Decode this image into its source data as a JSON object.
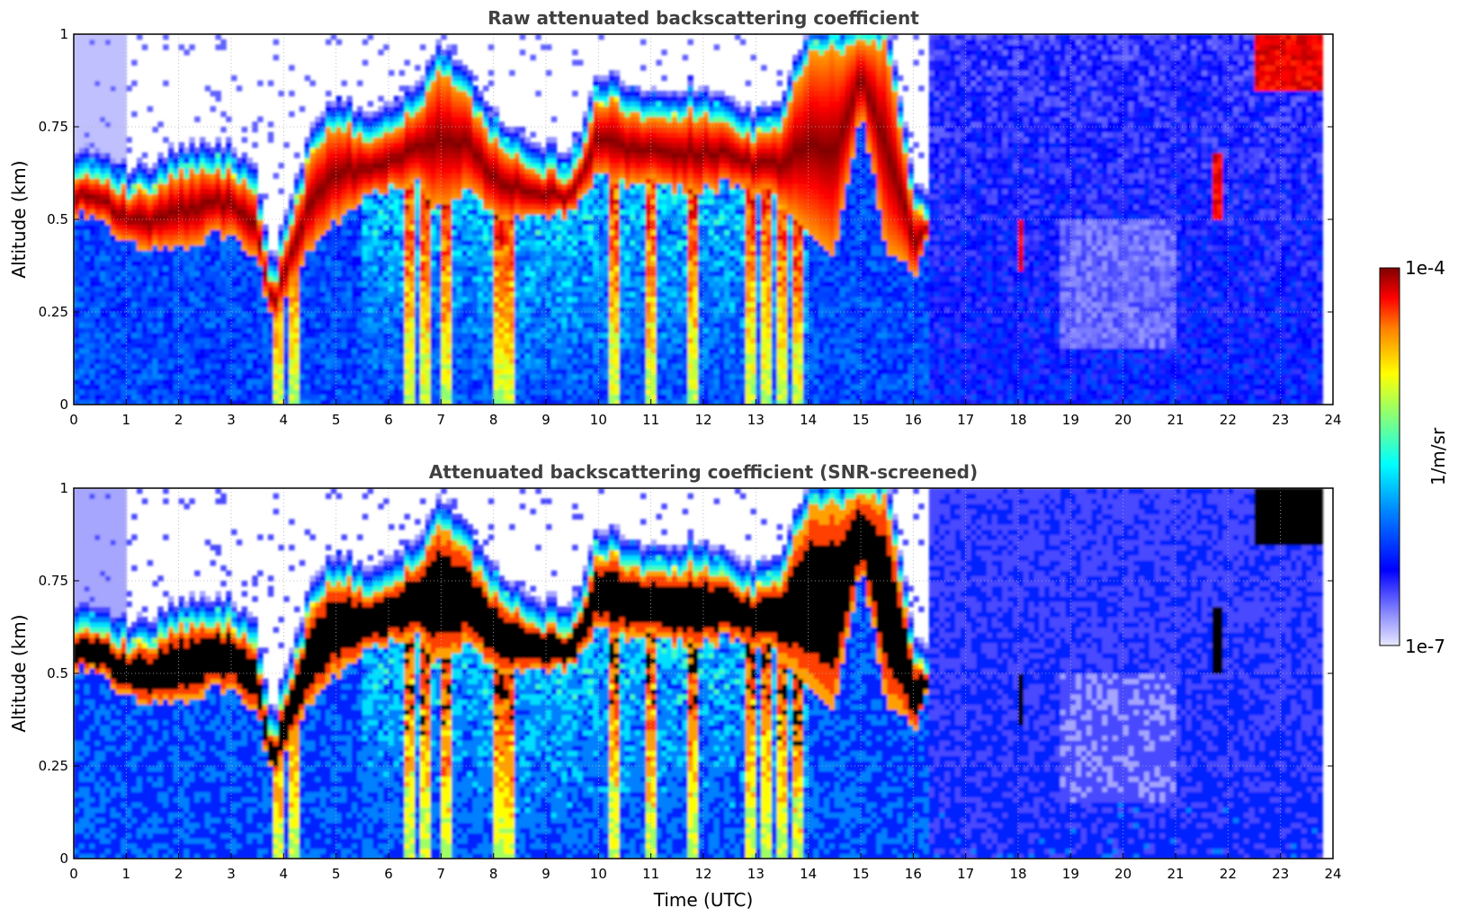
{
  "chart_data": [
    {
      "type": "heatmap",
      "title": "Raw attenuated backscattering coefficient",
      "xlabel": "",
      "ylabel": "Altitude (km)",
      "xlim": [
        0,
        24
      ],
      "ylim": [
        0,
        1
      ],
      "x_ticks": [
        "0",
        "1",
        "2",
        "3",
        "4",
        "5",
        "6",
        "7",
        "8",
        "9",
        "10",
        "11",
        "12",
        "13",
        "14",
        "15",
        "16",
        "17",
        "18",
        "19",
        "20",
        "21",
        "22",
        "23",
        "24"
      ],
      "y_ticks": [
        "0",
        "0.25",
        "0.5",
        "0.75",
        "1"
      ],
      "grid": true,
      "data_end_time": 23.8,
      "cloud_layer": {
        "time": [
          0,
          0.5,
          1,
          1.5,
          2,
          2.5,
          3,
          3.5,
          3.8,
          4,
          4.5,
          5,
          5.5,
          6,
          6.5,
          7,
          7.5,
          8,
          8.5,
          9,
          9.5,
          10,
          10.5,
          11,
          11.5,
          12,
          12.5,
          13,
          13.5,
          14,
          14.5,
          15,
          15.5,
          16,
          16.3
        ],
        "base_altitude_km": [
          0.52,
          0.5,
          0.45,
          0.42,
          0.43,
          0.45,
          0.47,
          0.4,
          0.22,
          0.28,
          0.42,
          0.5,
          0.55,
          0.58,
          0.6,
          0.52,
          0.58,
          0.52,
          0.5,
          0.5,
          0.52,
          0.62,
          0.6,
          0.6,
          0.58,
          0.58,
          0.6,
          0.58,
          0.55,
          0.45,
          0.4,
          0.8,
          0.42,
          0.35,
          0.45
        ],
        "top_altitude_km": [
          0.63,
          0.6,
          0.57,
          0.58,
          0.62,
          0.64,
          0.63,
          0.55,
          0.3,
          0.42,
          0.65,
          0.76,
          0.72,
          0.75,
          0.78,
          0.9,
          0.82,
          0.72,
          0.66,
          0.63,
          0.62,
          0.82,
          0.8,
          0.78,
          0.76,
          0.8,
          0.74,
          0.72,
          0.75,
          0.95,
          0.96,
          0.98,
          0.98,
          0.55,
          0.5
        ]
      },
      "precipitation_streaks_time": [
        3.9,
        4.2,
        6.4,
        6.7,
        7.1,
        8.1,
        8.3,
        10.3,
        11.0,
        11.8,
        12.9,
        13.2,
        13.5,
        13.8
      ],
      "late_cloud_segments": [
        {
          "time_start": 18.0,
          "time_end": 18.15,
          "base_altitude_km": 0.36,
          "top_altitude_km": 0.5
        },
        {
          "time_start": 21.7,
          "time_end": 21.95,
          "base_altitude_km": 0.5,
          "top_altitude_km": 0.68
        },
        {
          "time_start": 22.5,
          "time_end": 23.8,
          "base_altitude_km": 0.85,
          "top_altitude_km": 1.0
        }
      ]
    },
    {
      "type": "heatmap",
      "title": "Attenuated backscattering coefficient (SNR-screened)",
      "xlabel": "Time (UTC)",
      "ylabel": "Altitude (km)",
      "xlim": [
        0,
        24
      ],
      "ylim": [
        0,
        1
      ],
      "x_ticks": [
        "0",
        "1",
        "2",
        "3",
        "4",
        "5",
        "6",
        "7",
        "8",
        "9",
        "10",
        "11",
        "12",
        "13",
        "14",
        "15",
        "16",
        "17",
        "18",
        "19",
        "20",
        "21",
        "22",
        "23",
        "24"
      ],
      "y_ticks": [
        "0",
        "0.25",
        "0.5",
        "0.75",
        "1"
      ],
      "grid": true,
      "masked_color": "#000000"
    }
  ],
  "colorbar": {
    "label": "1/m/sr",
    "max_label": "1e-4",
    "min_label": "1e-7",
    "scale": "log",
    "colormap": "jet",
    "colors": [
      "#e8e8ff",
      "#9090ff",
      "#0000ff",
      "#0080ff",
      "#00ffff",
      "#80ff80",
      "#ffff00",
      "#ff8000",
      "#ff0000",
      "#800000"
    ]
  }
}
